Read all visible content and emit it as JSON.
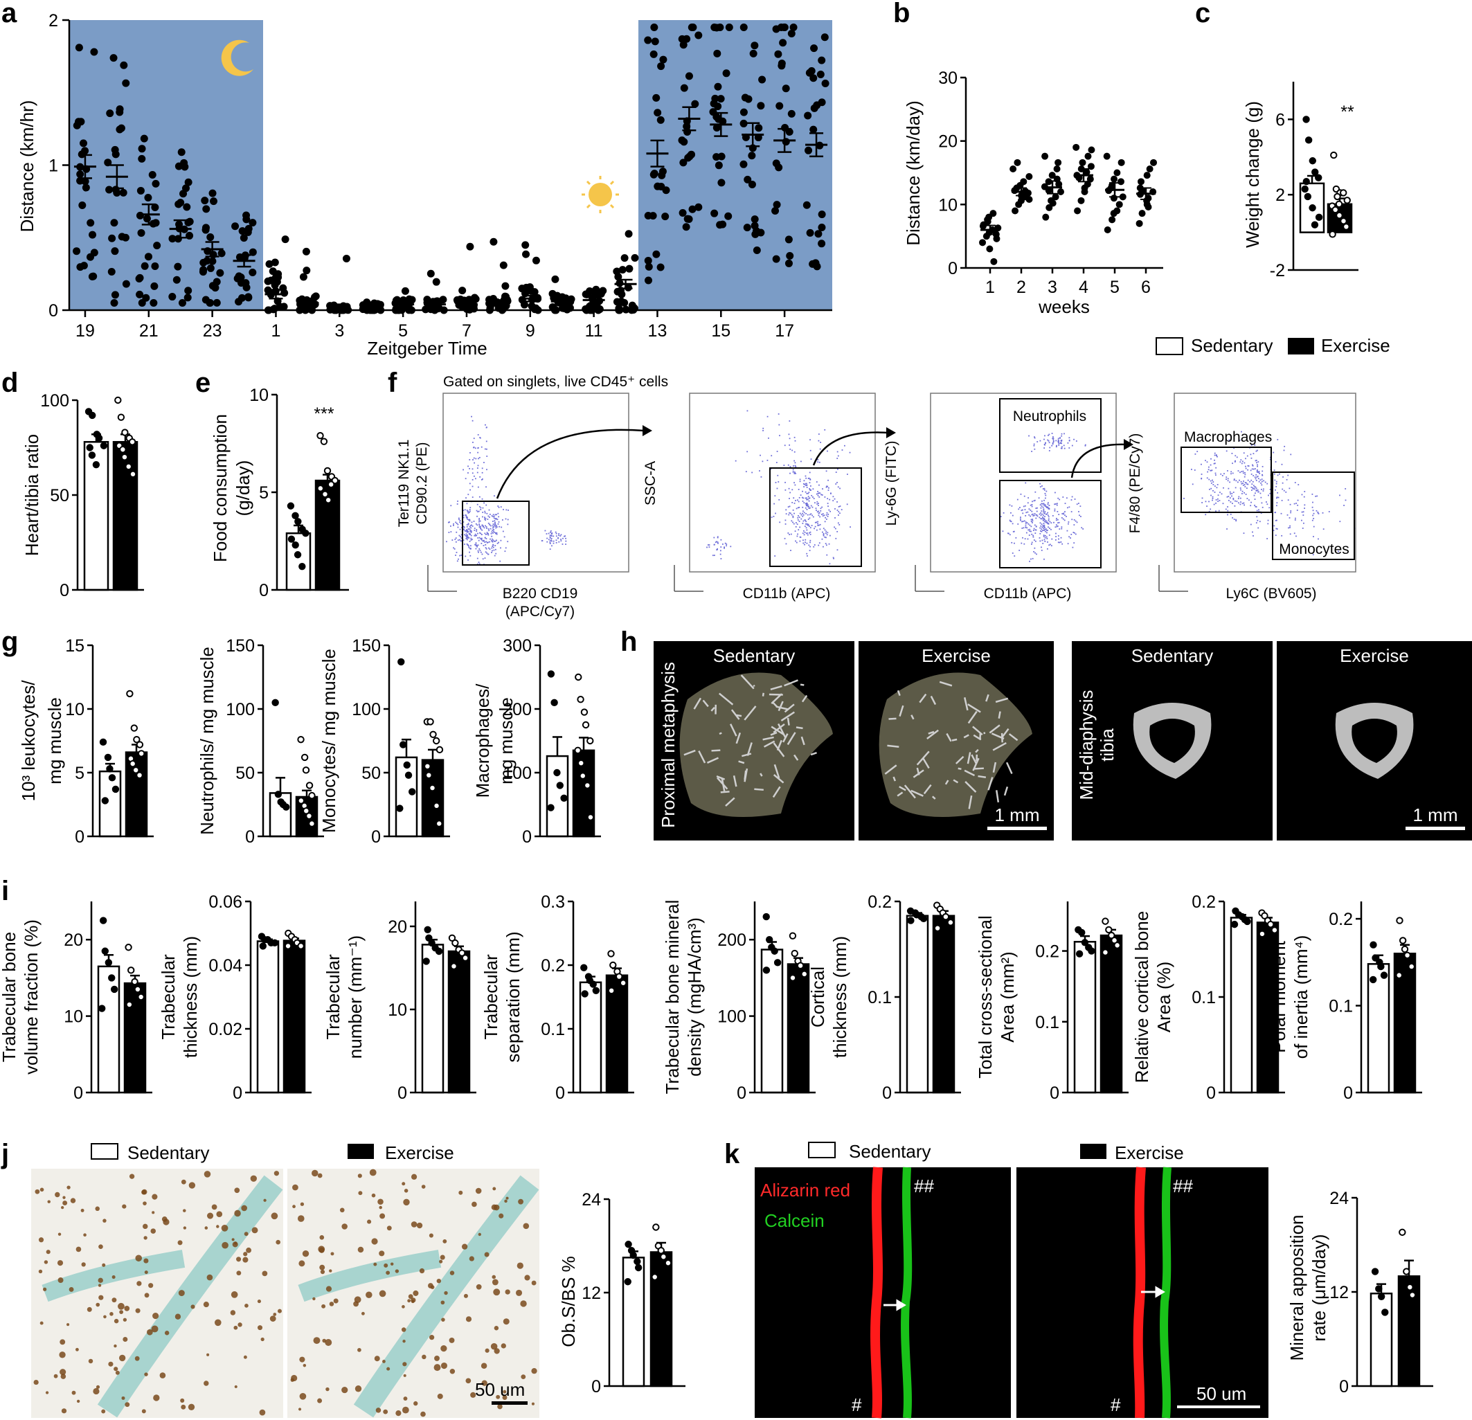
{
  "panel_labels": {
    "a": "a",
    "b": "b",
    "c": "c",
    "d": "d",
    "e": "e",
    "f": "f",
    "g": "g",
    "h": "h",
    "i": "i",
    "j": "j",
    "k": "k"
  },
  "legend": {
    "sedentary": "Sedentary",
    "exercise": "Exercise"
  },
  "panel_a": {
    "ylabel": "Distance (km/hr)",
    "xlabel": "Zeitgeber Time"
  },
  "panel_b": {
    "ylabel": "Distance (km/day)",
    "xlabel": "weeks"
  },
  "panel_c": {
    "ylabel": "Weight change (g)",
    "sig": "**"
  },
  "panel_d": {
    "ylabel": "Heart/tibia ratio"
  },
  "panel_e": {
    "ylabel_1": "Food consumption",
    "ylabel_2": "(g/day)",
    "sig": "***"
  },
  "panel_f": {
    "gating_title": "Gated on singlets, live CD45⁺ cells",
    "plots": [
      {
        "y1": "Ter119 NK1.1",
        "y2": "CD90.2 (PE)",
        "x1": "B220 CD19",
        "x2": "(APC/Cy7)"
      },
      {
        "y1": "SSC-A",
        "y2": "",
        "x1": "CD11b (APC)",
        "x2": ""
      },
      {
        "y1": "Ly-6G (FITC)",
        "y2": "",
        "x1": "CD11b (APC)",
        "x2": "",
        "gate": "Neutrophils"
      },
      {
        "y1": "F4/80 (PE/Cy7)",
        "y2": "",
        "x1": "Ly6C (BV605)",
        "x2": "",
        "gate": "Macrophages",
        "gate2": "Monocytes"
      }
    ]
  },
  "panel_g": {
    "plots": [
      {
        "l1": "10³ leukocytes/",
        "l2": "mg  muscle"
      },
      {
        "l1": "Neutrophils/ mg  muscle",
        "l2": ""
      },
      {
        "l1": "Monocytes/ mg  muscle",
        "l2": ""
      },
      {
        "l1": "Macrophages/",
        "l2": "mg  muscle"
      }
    ]
  },
  "panel_h": {
    "images": [
      {
        "title": "Sedentary",
        "side": "Proximal metaphysis",
        "side2": "tibia"
      },
      {
        "title": "Exercise",
        "scale": "1 mm"
      },
      {
        "title": "Sedentary",
        "side": "Mid-diaphysis",
        "side2": "tibia"
      },
      {
        "title": "Exercise",
        "scale": "1 mm"
      }
    ]
  },
  "panel_i": {
    "plots": [
      {
        "l1": "Trabecular bone",
        "l2": "volume  fraction (%)"
      },
      {
        "l1": "Trabecular",
        "l2": "thickness (mm)"
      },
      {
        "l1": "Trabecular",
        "l2": "number (mm⁻¹)"
      },
      {
        "l1": "Trabecular",
        "l2": "separation (mm)"
      },
      {
        "l1": "Trabecular bone mineral",
        "l2": "density (mgHA/cm³)"
      },
      {
        "l1": "Cortical",
        "l2": "thickness (mm)"
      },
      {
        "l1": "Total cross-sectional",
        "l2": "Area (mm²)"
      },
      {
        "l1": "Relative cortical bone",
        "l2": "Area (%)"
      },
      {
        "l1": "Polar moment",
        "l2": "of inertia (mm⁴)"
      }
    ]
  },
  "panel_j": {
    "ylabel": "Ob.S/BS %",
    "scale": "50 um"
  },
  "panel_k": {
    "ylabel_1": "Mineral apposition",
    "ylabel_2": "rate (μm/day)",
    "stain_red": "Alizarin red",
    "stain_green": "Calcein",
    "hash1": "#",
    "hash2": "##",
    "scale": "50 um"
  },
  "colors": {
    "night": "#7b9cc6",
    "sedentary_bar": "#ffffff",
    "exercise_bar": "#000000",
    "flow_dot": "#6e6ed8",
    "alizarin": "#ff1a1a",
    "calcein": "#19c219",
    "image_bg": "#000000",
    "stain_brown": "#7a4a1c",
    "stain_teal": "#a8d4cf"
  },
  "chart_data": [
    {
      "id": "a",
      "type": "scatter",
      "ylabel": "Distance (km/hr)",
      "xlabel": "Zeitgeber Time",
      "categories": [
        "19",
        "20",
        "21",
        "22",
        "23",
        "24",
        "1",
        "2",
        "3",
        "4",
        "5",
        "6",
        "7",
        "8",
        "9",
        "10",
        "11",
        "12",
        "13",
        "14",
        "15",
        "16",
        "17",
        "18"
      ],
      "xtick_labels": [
        "19",
        "21",
        "23",
        "1",
        "3",
        "5",
        "7",
        "9",
        "11",
        "13",
        "15",
        "17"
      ],
      "ylim": [
        0,
        2
      ],
      "yticks": [
        0,
        1,
        2
      ],
      "night_periods": [
        [
          "19",
          "24"
        ],
        [
          "13",
          "18"
        ]
      ],
      "means": [
        0.99,
        0.92,
        0.66,
        0.56,
        0.42,
        0.34,
        0.11,
        0.05,
        0.02,
        0.03,
        0.04,
        0.04,
        0.04,
        0.05,
        0.08,
        0.06,
        0.07,
        0.18,
        1.08,
        1.32,
        1.28,
        1.21,
        1.17,
        1.14
      ],
      "sems": [
        0.08,
        0.08,
        0.07,
        0.06,
        0.05,
        0.04,
        0.03,
        0.02,
        0.02,
        0.02,
        0.02,
        0.02,
        0.02,
        0.02,
        0.02,
        0.02,
        0.03,
        0.03,
        0.09,
        0.08,
        0.08,
        0.08,
        0.08,
        0.08
      ],
      "points_per_group": 24
    },
    {
      "id": "b",
      "type": "scatter",
      "ylabel": "Distance (km/day)",
      "xlabel": "weeks",
      "categories": [
        "1",
        "2",
        "3",
        "4",
        "5",
        "6"
      ],
      "ylim": [
        0,
        30
      ],
      "yticks": [
        0,
        10,
        20,
        30
      ],
      "means": [
        6.0,
        12.0,
        12.7,
        14.6,
        12.3,
        11.7
      ],
      "sems": [
        0.7,
        0.6,
        1.0,
        1.0,
        1.1,
        0.9
      ],
      "points": [
        [
          4.0,
          5.0,
          5.6,
          6.0,
          6.3,
          6.8,
          7.3,
          8.0,
          8.6,
          5.3,
          6.6,
          7.6,
          3.0,
          1.0,
          4.6
        ],
        [
          9.0,
          10.0,
          10.6,
          11.2,
          11.8,
          12.2,
          12.6,
          13.0,
          13.6,
          14.4,
          15.6,
          16.6,
          11.4,
          12.1,
          10.8
        ],
        [
          8.0,
          9.5,
          10.6,
          11.2,
          12.0,
          12.8,
          13.6,
          14.6,
          15.6,
          16.6,
          17.6,
          12.2,
          10.2,
          14.0,
          13.2
        ],
        [
          9.0,
          10.6,
          12.0,
          13.2,
          14.0,
          14.6,
          15.6,
          16.6,
          17.6,
          18.6,
          19.0,
          14.2,
          12.6,
          15.1,
          16.0
        ],
        [
          6.0,
          7.6,
          8.6,
          10.0,
          11.2,
          12.2,
          13.0,
          14.0,
          15.0,
          16.6,
          17.6,
          12.6,
          11.0,
          9.0,
          13.6
        ],
        [
          7.0,
          8.6,
          10.0,
          11.0,
          12.0,
          12.6,
          13.6,
          14.6,
          15.6,
          16.6,
          11.6,
          12.2,
          10.6,
          9.6
        ]
      ]
    },
    {
      "id": "c",
      "type": "bar",
      "ylabel": "Weight change (g)",
      "categories": [
        "Sedentary",
        "Exercise"
      ],
      "values": [
        2.6,
        1.5
      ],
      "sems": [
        0.4,
        0.3
      ],
      "ylim": [
        -2,
        8
      ],
      "yticks": [
        -2,
        2,
        6
      ],
      "significance": "**",
      "points": [
        [
          6.0,
          4.9,
          3.8,
          3.2,
          2.9,
          2.3,
          1.9,
          1.3,
          0.4,
          0.8,
          2.7
        ],
        [
          4.1,
          2.3,
          2.1,
          2.1,
          1.7,
          1.4,
          1.2,
          0.9,
          0.6,
          0.3,
          -0.1,
          1.9,
          1.5
        ]
      ]
    },
    {
      "id": "d",
      "type": "bar",
      "ylabel": "Heart/tibia ratio",
      "categories": [
        "Sedentary",
        "Exercise"
      ],
      "values": [
        78,
        78
      ],
      "sems": [
        4,
        4
      ],
      "ylim": [
        0,
        100
      ],
      "yticks": [
        0,
        50,
        100
      ],
      "points": [
        [
          94,
          92,
          82,
          80,
          76,
          75,
          71,
          66
        ],
        [
          100,
          91,
          83,
          80,
          78,
          76,
          74,
          70,
          65,
          61
        ]
      ]
    },
    {
      "id": "e",
      "type": "bar",
      "ylabel": "Food consumption (g/day)",
      "categories": [
        "Sedentary",
        "Exercise"
      ],
      "values": [
        2.9,
        5.6
      ],
      "sems": [
        0.4,
        0.3
      ],
      "ylim": [
        0,
        10
      ],
      "yticks": [
        0,
        5,
        10
      ],
      "significance": "***",
      "points": [
        [
          4.3,
          3.8,
          3.5,
          3.1,
          2.9,
          2.6,
          2.3,
          1.8,
          1.2
        ],
        [
          7.9,
          7.6,
          6.1,
          5.8,
          5.6,
          5.2,
          4.9,
          4.6,
          5.4
        ]
      ]
    },
    {
      "id": "g1",
      "type": "bar",
      "ylabel": "10³ leukocytes/ mg muscle",
      "categories": [
        "Sedentary",
        "Exercise"
      ],
      "values": [
        5.1,
        6.6
      ],
      "sems": [
        0.6,
        0.6
      ],
      "ylim": [
        0,
        15
      ],
      "yticks": [
        0,
        5,
        10,
        15
      ],
      "points": [
        [
          7.4,
          6.2,
          5.3,
          4.6,
          3.7,
          2.8
        ],
        [
          11.2,
          8.5,
          7.6,
          7.2,
          6.5,
          6.1,
          5.7,
          5.2,
          4.8
        ]
      ]
    },
    {
      "id": "g2",
      "type": "bar",
      "ylabel": "Neutrophils/ mg muscle",
      "categories": [
        "Sedentary",
        "Exercise"
      ],
      "values": [
        34,
        31
      ],
      "sems": [
        12,
        5
      ],
      "ylim": [
        0,
        150
      ],
      "yticks": [
        0,
        50,
        100,
        150
      ],
      "points": [
        [
          105,
          33,
          27,
          25,
          23
        ],
        [
          76,
          62,
          52,
          40,
          32,
          28,
          24,
          20,
          16,
          10
        ]
      ]
    },
    {
      "id": "g3",
      "type": "bar",
      "ylabel": "Monocytes/ mg muscle",
      "categories": [
        "Sedentary",
        "Exercise"
      ],
      "values": [
        62,
        60
      ],
      "sems": [
        14,
        8
      ],
      "ylim": [
        0,
        150
      ],
      "yticks": [
        0,
        50,
        100,
        150
      ],
      "points": [
        [
          137,
          72,
          56,
          48,
          35,
          22
        ],
        [
          90,
          90,
          80,
          75,
          68,
          55,
          48,
          38,
          24,
          10
        ]
      ]
    },
    {
      "id": "g4",
      "type": "bar",
      "ylabel": "Macrophages/ mg muscle",
      "categories": [
        "Sedentary",
        "Exercise"
      ],
      "values": [
        126,
        135
      ],
      "sems": [
        30,
        20
      ],
      "ylim": [
        0,
        300
      ],
      "yticks": [
        0,
        100,
        200,
        300
      ],
      "points": [
        [
          255,
          210,
          100,
          80,
          60,
          45
        ],
        [
          250,
          215,
          195,
          175,
          150,
          135,
          115,
          95,
          80,
          30
        ]
      ]
    },
    {
      "id": "i1",
      "type": "bar",
      "ylabel": "Trabecular bone volume fraction (%)",
      "categories": [
        "Sedentary",
        "Exercise"
      ],
      "values": [
        16.5,
        14.3
      ],
      "sems": [
        1.5,
        1.0
      ],
      "ylim": [
        0,
        25
      ],
      "yticks": [
        0,
        10,
        20
      ],
      "points": [
        [
          22.5,
          18.5,
          17,
          15,
          13.5,
          11
        ],
        [
          19,
          16,
          14.5,
          13.5,
          12.5,
          11.5
        ]
      ]
    },
    {
      "id": "i2",
      "type": "bar",
      "ylabel": "Trabecular thickness (mm)",
      "categories": [
        "Sedentary",
        "Exercise"
      ],
      "values": [
        0.0475,
        0.0477
      ],
      "sems": [
        0.0006,
        0.0007
      ],
      "ylim": [
        0,
        0.06
      ],
      "yticks": [
        0,
        0.02,
        0.04,
        0.06
      ],
      "points": [
        [
          0.049,
          0.048,
          0.048,
          0.047,
          0.047,
          0.046
        ],
        [
          0.05,
          0.049,
          0.048,
          0.047,
          0.046,
          0.046
        ]
      ]
    },
    {
      "id": "i3",
      "type": "bar",
      "ylabel": "Trabecular number (mm⁻¹)",
      "categories": [
        "Sedentary",
        "Exercise"
      ],
      "values": [
        17.8,
        17.0
      ],
      "sems": [
        0.6,
        0.6
      ],
      "ylim": [
        0,
        23
      ],
      "yticks": [
        0,
        10,
        20
      ],
      "points": [
        [
          19.6,
          18.6,
          18.0,
          17.4,
          17.0,
          15.8
        ],
        [
          18.6,
          18.0,
          17.2,
          16.8,
          16.2,
          15.2
        ]
      ]
    },
    {
      "id": "i4",
      "type": "bar",
      "ylabel": "Trabecular separation (mm)",
      "categories": [
        "Sedentary",
        "Exercise"
      ],
      "values": [
        0.173,
        0.184
      ],
      "sems": [
        0.009,
        0.011
      ],
      "ylim": [
        0,
        0.3
      ],
      "yticks": [
        0,
        0.1,
        0.2,
        0.3
      ],
      "points": [
        [
          0.196,
          0.182,
          0.176,
          0.17,
          0.16,
          0.155
        ],
        [
          0.218,
          0.2,
          0.19,
          0.182,
          0.172,
          0.16
        ]
      ]
    },
    {
      "id": "i5",
      "type": "bar",
      "ylabel": "Trabecular bone mineral density (mgHA/cm³)",
      "categories": [
        "Sedentary",
        "Exercise"
      ],
      "values": [
        187,
        168
      ],
      "sems": [
        10,
        8
      ],
      "ylim": [
        0,
        250
      ],
      "yticks": [
        0,
        100,
        200
      ],
      "points": [
        [
          230,
          200,
          190,
          185,
          170,
          160
        ],
        [
          205,
          182,
          172,
          166,
          155,
          150
        ]
      ]
    },
    {
      "id": "i6",
      "type": "bar",
      "ylabel": "Cortical thickness (mm)",
      "categories": [
        "Sedentary",
        "Exercise"
      ],
      "values": [
        0.185,
        0.185
      ],
      "sems": [
        0.003,
        0.005
      ],
      "ylim": [
        0,
        0.2
      ],
      "yticks": [
        0,
        0.1,
        0.2
      ],
      "points": [
        [
          0.19,
          0.188,
          0.186,
          0.184,
          0.182,
          0.18
        ],
        [
          0.196,
          0.192,
          0.188,
          0.184,
          0.178,
          0.172
        ]
      ]
    },
    {
      "id": "i7",
      "type": "bar",
      "ylabel": "Total cross-sectional Area (mm²)",
      "categories": [
        "Sedentary",
        "Exercise"
      ],
      "values": [
        0.213,
        0.222
      ],
      "sems": [
        0.008,
        0.008
      ],
      "ylim": [
        0,
        0.27
      ],
      "yticks": [
        0,
        0.1,
        0.2
      ],
      "points": [
        [
          0.23,
          0.226,
          0.212,
          0.205,
          0.2,
          0.196
        ],
        [
          0.242,
          0.23,
          0.222,
          0.215,
          0.208,
          0.198
        ]
      ]
    },
    {
      "id": "i8",
      "type": "bar",
      "ylabel": "Relative cortical bone Area (%)",
      "categories": [
        "Sedentary",
        "Exercise"
      ],
      "values": [
        0.183,
        0.178
      ],
      "sems": [
        0.003,
        0.005
      ],
      "ylim": [
        0,
        0.2
      ],
      "yticks": [
        0,
        0.1,
        0.2
      ],
      "points": [
        [
          0.19,
          0.186,
          0.184,
          0.181,
          0.179,
          0.176
        ],
        [
          0.188,
          0.185,
          0.18,
          0.176,
          0.17,
          0.166
        ]
      ]
    },
    {
      "id": "i9",
      "type": "bar",
      "ylabel": "Polar moment of inertia (mm⁴)",
      "categories": [
        "Sedentary",
        "Exercise"
      ],
      "values": [
        0.148,
        0.16
      ],
      "sems": [
        0.01,
        0.01
      ],
      "ylim": [
        0,
        0.22
      ],
      "yticks": [
        0,
        0.1,
        0.2
      ],
      "points": [
        [
          0.17,
          0.155,
          0.15,
          0.145,
          0.135,
          0.13
        ],
        [
          0.198,
          0.175,
          0.165,
          0.158,
          0.145,
          0.135
        ]
      ]
    },
    {
      "id": "j",
      "type": "bar",
      "ylabel": "Ob.S/BS %",
      "categories": [
        "Sedentary",
        "Exercise"
      ],
      "values": [
        16.5,
        17.2
      ],
      "sems": [
        0.8,
        1.2
      ],
      "ylim": [
        0,
        24
      ],
      "yticks": [
        0,
        12,
        24
      ],
      "points": [
        [
          18.2,
          17.4,
          16.8,
          16.0,
          15.2,
          13.4
        ],
        [
          20.4,
          18.0,
          17.4,
          16.6,
          15.8,
          14.0
        ]
      ]
    },
    {
      "id": "k",
      "type": "bar",
      "ylabel": "Mineral apposition rate (μm/day)",
      "categories": [
        "Sedentary",
        "Exercise"
      ],
      "values": [
        11.8,
        14.0
      ],
      "sems": [
        1.2,
        2.0
      ],
      "ylim": [
        0,
        24
      ],
      "yticks": [
        0,
        12,
        24
      ],
      "points": [
        [
          14.6,
          12.4,
          11.4,
          9.4
        ],
        [
          19.6,
          14.6,
          12.6,
          11.6
        ]
      ]
    }
  ]
}
